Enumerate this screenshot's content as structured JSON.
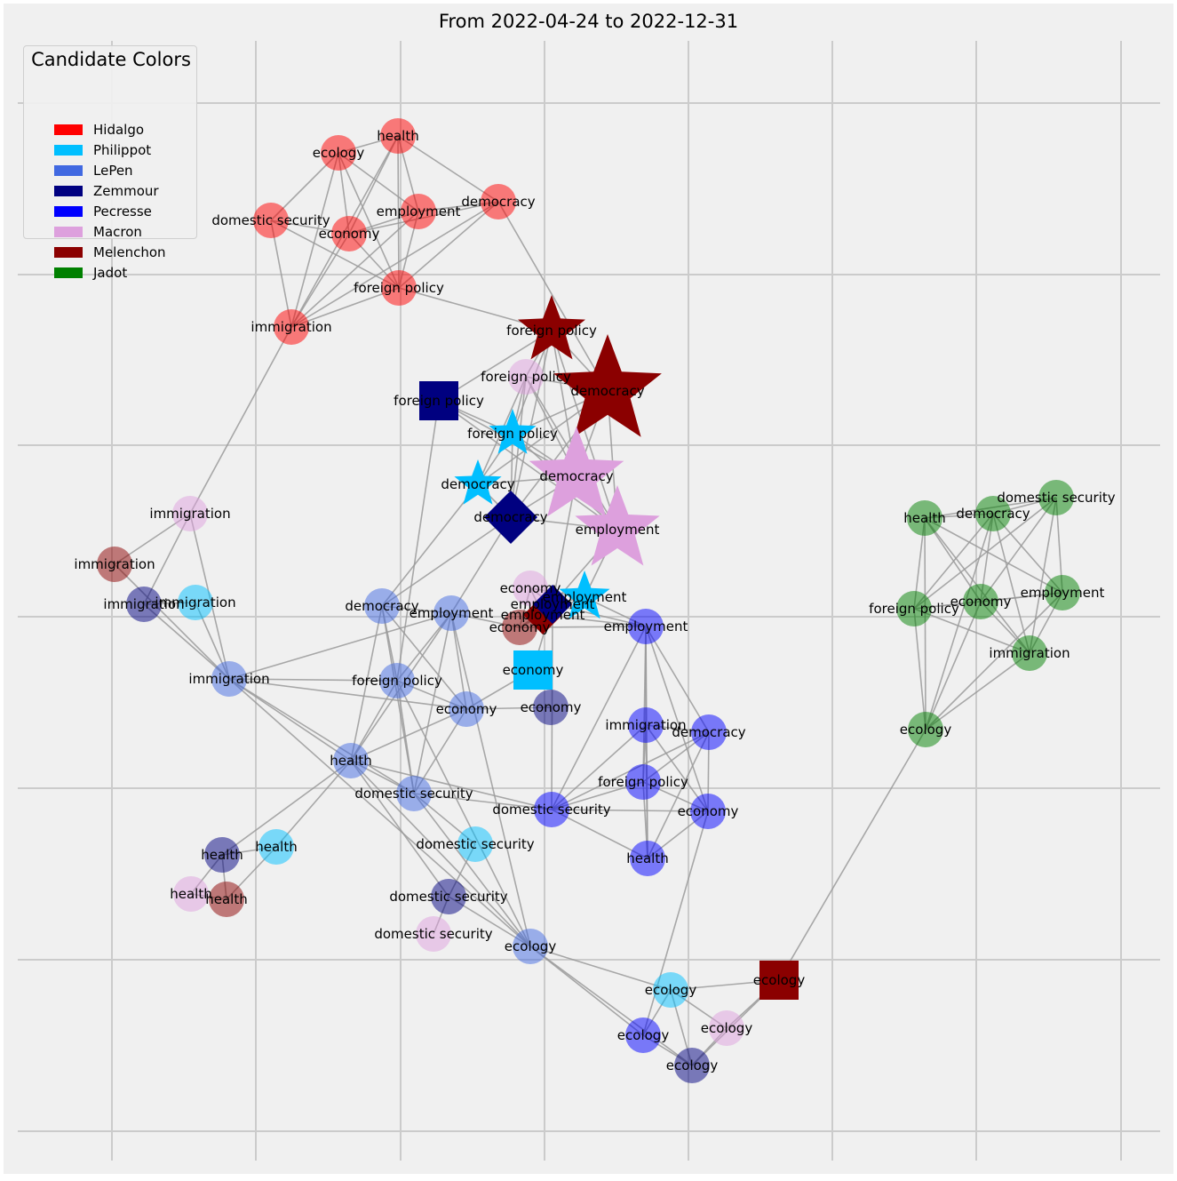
{
  "title": "From 2022-04-24 to 2022-12-31",
  "legend": {
    "title": "Candidate Colors",
    "items": [
      {
        "name": "Hidalgo",
        "color": "#ff0000"
      },
      {
        "name": "Philippot",
        "color": "#00bfff"
      },
      {
        "name": "LePen",
        "color": "#4169e1"
      },
      {
        "name": "Zemmour",
        "color": "#000080"
      },
      {
        "name": "Pecresse",
        "color": "#0000ff"
      },
      {
        "name": "Macron",
        "color": "#dda0dd"
      },
      {
        "name": "Melenchon",
        "color": "#8b0000"
      },
      {
        "name": "Jadot",
        "color": "#008000"
      }
    ]
  },
  "nodes": [
    {
      "id": "H-ecology",
      "label": "ecology",
      "candidate": "Hidalgo"
    },
    {
      "id": "H-health",
      "label": "health",
      "candidate": "Hidalgo"
    },
    {
      "id": "H-democracy",
      "label": "democracy",
      "candidate": "Hidalgo"
    },
    {
      "id": "H-employment",
      "label": "employment",
      "candidate": "Hidalgo"
    },
    {
      "id": "H-domsec",
      "label": "domestic security",
      "candidate": "Hidalgo"
    },
    {
      "id": "H-economy",
      "label": "economy",
      "candidate": "Hidalgo"
    },
    {
      "id": "H-foreign",
      "label": "foreign policy",
      "candidate": "Hidalgo"
    },
    {
      "id": "H-immigration",
      "label": "immigration",
      "candidate": "Hidalgo"
    },
    {
      "id": "Me-foreign",
      "label": "foreign policy",
      "candidate": "Melenchon"
    },
    {
      "id": "Me-democracy",
      "label": "democracy",
      "candidate": "Melenchon"
    },
    {
      "id": "Ma-foreign",
      "label": "foreign policy",
      "candidate": "Macron"
    },
    {
      "id": "Z-foreign",
      "label": "foreign policy",
      "candidate": "Zemmour"
    },
    {
      "id": "P-foreign",
      "label": "foreign policy",
      "candidate": "Philippot"
    },
    {
      "id": "Ma-democracy",
      "label": "democracy",
      "candidate": "Macron"
    },
    {
      "id": "P-democracy",
      "label": "democracy",
      "candidate": "Philippot"
    },
    {
      "id": "Z-democracy",
      "label": "democracy",
      "candidate": "Zemmour"
    },
    {
      "id": "Ma-employment",
      "label": "employment",
      "candidate": "Macron"
    },
    {
      "id": "Ma-immigration",
      "label": "immigration",
      "candidate": "Macron"
    },
    {
      "id": "Me-immigration",
      "label": "immigration",
      "candidate": "Melenchon"
    },
    {
      "id": "Z-immigration",
      "label": "immigration",
      "candidate": "Zemmour"
    },
    {
      "id": "P-immigration",
      "label": "immigration",
      "candidate": "Philippot"
    },
    {
      "id": "L-democracy",
      "label": "democracy",
      "candidate": "LePen"
    },
    {
      "id": "L-employment",
      "label": "employment",
      "candidate": "LePen"
    },
    {
      "id": "L-immigration",
      "label": "immigration",
      "candidate": "LePen"
    },
    {
      "id": "L-foreign",
      "label": "foreign policy",
      "candidate": "LePen"
    },
    {
      "id": "L-economy",
      "label": "economy",
      "candidate": "LePen"
    },
    {
      "id": "L-health",
      "label": "health",
      "candidate": "LePen"
    },
    {
      "id": "L-domsec",
      "label": "domestic security",
      "candidate": "LePen"
    },
    {
      "id": "L-ecology",
      "label": "ecology",
      "candidate": "LePen"
    },
    {
      "id": "Ma-economy",
      "label": "economy",
      "candidate": "Macron"
    },
    {
      "id": "Me-economy",
      "label": "economy",
      "candidate": "Melenchon"
    },
    {
      "id": "Me-employment",
      "label": "employment",
      "candidate": "Melenchon"
    },
    {
      "id": "Z-employment",
      "label": "employment",
      "candidate": "Zemmour"
    },
    {
      "id": "P-employment",
      "label": "employment",
      "candidate": "Philippot"
    },
    {
      "id": "P-economy",
      "label": "economy",
      "candidate": "Philippot"
    },
    {
      "id": "Z-economy",
      "label": "economy",
      "candidate": "Zemmour"
    },
    {
      "id": "Pe-employment",
      "label": "employment",
      "candidate": "Pecresse"
    },
    {
      "id": "Pe-immigration",
      "label": "immigration",
      "candidate": "Pecresse"
    },
    {
      "id": "Pe-democracy",
      "label": "democracy",
      "candidate": "Pecresse"
    },
    {
      "id": "Pe-foreign",
      "label": "foreign policy",
      "candidate": "Pecresse"
    },
    {
      "id": "Pe-domsec",
      "label": "domestic security",
      "candidate": "Pecresse"
    },
    {
      "id": "Pe-economy",
      "label": "economy",
      "candidate": "Pecresse"
    },
    {
      "id": "Pe-health",
      "label": "health",
      "candidate": "Pecresse"
    },
    {
      "id": "P-domsec",
      "label": "domestic security",
      "candidate": "Philippot"
    },
    {
      "id": "Z-domsec",
      "label": "domestic security",
      "candidate": "Zemmour"
    },
    {
      "id": "Ma-domsec",
      "label": "domestic security",
      "candidate": "Macron"
    },
    {
      "id": "Z-health",
      "label": "health",
      "candidate": "Zemmour"
    },
    {
      "id": "P-health",
      "label": "health",
      "candidate": "Philippot"
    },
    {
      "id": "Ma-health",
      "label": "health",
      "candidate": "Macron"
    },
    {
      "id": "Me-health",
      "label": "health",
      "candidate": "Melenchon"
    },
    {
      "id": "P-ecology",
      "label": "ecology",
      "candidate": "Philippot"
    },
    {
      "id": "Me-ecology",
      "label": "ecology",
      "candidate": "Melenchon"
    },
    {
      "id": "Pe-ecology",
      "label": "ecology",
      "candidate": "Pecresse"
    },
    {
      "id": "Ma-ecology",
      "label": "ecology",
      "candidate": "Macron"
    },
    {
      "id": "Z-ecology",
      "label": "ecology",
      "candidate": "Zemmour"
    },
    {
      "id": "J-health",
      "label": "health",
      "candidate": "Jadot"
    },
    {
      "id": "J-democracy",
      "label": "democracy",
      "candidate": "Jadot"
    },
    {
      "id": "J-domsec",
      "label": "domestic security",
      "candidate": "Jadot"
    },
    {
      "id": "J-employment",
      "label": "employment",
      "candidate": "Jadot"
    },
    {
      "id": "J-economy",
      "label": "economy",
      "candidate": "Jadot"
    },
    {
      "id": "J-foreign",
      "label": "foreign policy",
      "candidate": "Jadot"
    },
    {
      "id": "J-immigration",
      "label": "immigration",
      "candidate": "Jadot"
    },
    {
      "id": "J-ecology",
      "label": "ecology",
      "candidate": "Jadot"
    }
  ],
  "edges": [
    [
      "H-ecology",
      "H-health"
    ],
    [
      "H-ecology",
      "H-domsec"
    ],
    [
      "H-ecology",
      "H-economy"
    ],
    [
      "H-ecology",
      "H-employment"
    ],
    [
      "H-ecology",
      "H-foreign"
    ],
    [
      "H-ecology",
      "H-immigration"
    ],
    [
      "H-health",
      "H-democracy"
    ],
    [
      "H-health",
      "H-employment"
    ],
    [
      "H-health",
      "H-economy"
    ],
    [
      "H-health",
      "H-foreign"
    ],
    [
      "H-health",
      "H-immigration"
    ],
    [
      "H-democracy",
      "H-employment"
    ],
    [
      "H-democracy",
      "H-economy"
    ],
    [
      "H-democracy",
      "H-foreign"
    ],
    [
      "H-democracy",
      "H-immigration"
    ],
    [
      "H-democracy",
      "Me-democracy"
    ],
    [
      "H-employment",
      "H-economy"
    ],
    [
      "H-employment",
      "H-foreign"
    ],
    [
      "H-employment",
      "H-immigration"
    ],
    [
      "H-domsec",
      "H-economy"
    ],
    [
      "H-domsec",
      "H-foreign"
    ],
    [
      "H-domsec",
      "H-immigration"
    ],
    [
      "H-economy",
      "H-foreign"
    ],
    [
      "H-economy",
      "H-immigration"
    ],
    [
      "H-foreign",
      "H-immigration"
    ],
    [
      "H-foreign",
      "Me-foreign"
    ],
    [
      "H-immigration",
      "Ma-immigration"
    ],
    [
      "Me-foreign",
      "Me-democracy"
    ],
    [
      "Me-foreign",
      "Ma-foreign"
    ],
    [
      "Me-foreign",
      "Z-foreign"
    ],
    [
      "Me-foreign",
      "P-foreign"
    ],
    [
      "Me-foreign",
      "Ma-democracy"
    ],
    [
      "Me-foreign",
      "Ma-employment"
    ],
    [
      "Me-foreign",
      "Z-democracy"
    ],
    [
      "Me-democracy",
      "Ma-foreign"
    ],
    [
      "Me-democracy",
      "P-foreign"
    ],
    [
      "Me-democracy",
      "Ma-democracy"
    ],
    [
      "Me-democracy",
      "Ma-employment"
    ],
    [
      "Me-democracy",
      "Z-democracy"
    ],
    [
      "Me-democracy",
      "P-democracy"
    ],
    [
      "Ma-foreign",
      "P-foreign"
    ],
    [
      "Ma-foreign",
      "Ma-democracy"
    ],
    [
      "Ma-foreign",
      "Z-democracy"
    ],
    [
      "Ma-foreign",
      "P-democracy"
    ],
    [
      "Ma-foreign",
      "Ma-employment"
    ],
    [
      "Z-foreign",
      "P-foreign"
    ],
    [
      "Z-foreign",
      "Ma-democracy"
    ],
    [
      "Z-foreign",
      "L-foreign"
    ],
    [
      "Z-foreign",
      "Ma-employment"
    ],
    [
      "P-foreign",
      "Ma-democracy"
    ],
    [
      "P-foreign",
      "Z-democracy"
    ],
    [
      "P-foreign",
      "P-democracy"
    ],
    [
      "P-foreign",
      "Ma-employment"
    ],
    [
      "Ma-democracy",
      "Ma-employment"
    ],
    [
      "Ma-democracy",
      "Z-democracy"
    ],
    [
      "Ma-democracy",
      "P-democracy"
    ],
    [
      "Ma-democracy",
      "Z-employment"
    ],
    [
      "Ma-employment",
      "Z-democracy"
    ],
    [
      "Ma-employment",
      "P-employment"
    ],
    [
      "Ma-employment",
      "Z-employment"
    ],
    [
      "Z-democracy",
      "L-democracy"
    ],
    [
      "Z-democracy",
      "P-democracy"
    ],
    [
      "Z-democracy",
      "L-employment"
    ],
    [
      "P-democracy",
      "L-democracy"
    ],
    [
      "Ma-immigration",
      "Me-immigration"
    ],
    [
      "Ma-immigration",
      "Z-immigration"
    ],
    [
      "Ma-immigration",
      "L-immigration"
    ],
    [
      "Me-immigration",
      "L-immigration"
    ],
    [
      "Z-immigration",
      "L-immigration"
    ],
    [
      "P-immigration",
      "L-immigration"
    ],
    [
      "Z-immigration",
      "P-immigration"
    ],
    [
      "L-democracy",
      "L-foreign"
    ],
    [
      "L-democracy",
      "L-health"
    ],
    [
      "L-democracy",
      "L-domsec"
    ],
    [
      "L-democracy",
      "L-economy"
    ],
    [
      "L-democracy",
      "L-employment"
    ],
    [
      "L-employment",
      "L-immigration"
    ],
    [
      "L-employment",
      "L-foreign"
    ],
    [
      "L-employment",
      "L-economy"
    ],
    [
      "L-employment",
      "L-health"
    ],
    [
      "L-employment",
      "L-domsec"
    ],
    [
      "L-employment",
      "L-ecology"
    ],
    [
      "L-employment",
      "Me-economy"
    ],
    [
      "L-immigration",
      "L-foreign"
    ],
    [
      "L-immigration",
      "L-health"
    ],
    [
      "L-immigration",
      "L-domsec"
    ],
    [
      "L-immigration",
      "L-ecology"
    ],
    [
      "L-immigration",
      "L-economy"
    ],
    [
      "L-foreign",
      "L-health"
    ],
    [
      "L-foreign",
      "L-domsec"
    ],
    [
      "L-foreign",
      "L-economy"
    ],
    [
      "L-foreign",
      "L-ecology"
    ],
    [
      "L-economy",
      "L-health"
    ],
    [
      "L-economy",
      "Z-economy"
    ],
    [
      "L-economy",
      "P-economy"
    ],
    [
      "L-economy",
      "L-domsec"
    ],
    [
      "L-health",
      "L-domsec"
    ],
    [
      "L-health",
      "L-ecology"
    ],
    [
      "L-health",
      "Z-health"
    ],
    [
      "L-health",
      "P-health"
    ],
    [
      "L-health",
      "Pe-domsec"
    ],
    [
      "L-domsec",
      "L-ecology"
    ],
    [
      "L-domsec",
      "Pe-domsec"
    ],
    [
      "L-domsec",
      "P-domsec"
    ],
    [
      "Ma-economy",
      "Me-economy"
    ],
    [
      "Ma-economy",
      "Me-employment"
    ],
    [
      "Ma-economy",
      "Z-employment"
    ],
    [
      "Ma-economy",
      "P-employment"
    ],
    [
      "Me-economy",
      "Me-employment"
    ],
    [
      "Me-economy",
      "Z-employment"
    ],
    [
      "Me-economy",
      "Pe-employment"
    ],
    [
      "Me-employment",
      "Z-employment"
    ],
    [
      "Me-employment",
      "P-employment"
    ],
    [
      "Me-employment",
      "Pe-employment"
    ],
    [
      "Z-employment",
      "P-employment"
    ],
    [
      "Z-employment",
      "Pe-employment"
    ],
    [
      "Z-employment",
      "P-economy"
    ],
    [
      "Z-employment",
      "Pe-domsec"
    ],
    [
      "P-employment",
      "Pe-employment"
    ],
    [
      "Pe-employment",
      "Pe-immigration"
    ],
    [
      "Pe-employment",
      "Pe-democracy"
    ],
    [
      "Pe-employment",
      "Pe-foreign"
    ],
    [
      "Pe-employment",
      "Pe-domsec"
    ],
    [
      "Pe-employment",
      "Pe-economy"
    ],
    [
      "Pe-employment",
      "Pe-health"
    ],
    [
      "Pe-immigration",
      "Pe-democracy"
    ],
    [
      "Pe-immigration",
      "Pe-foreign"
    ],
    [
      "Pe-immigration",
      "Pe-domsec"
    ],
    [
      "Pe-immigration",
      "Pe-economy"
    ],
    [
      "Pe-immigration",
      "Pe-health"
    ],
    [
      "Pe-democracy",
      "Pe-foreign"
    ],
    [
      "Pe-democracy",
      "Pe-domsec"
    ],
    [
      "Pe-democracy",
      "Pe-economy"
    ],
    [
      "Pe-democracy",
      "Pe-health"
    ],
    [
      "Pe-foreign",
      "Pe-domsec"
    ],
    [
      "Pe-foreign",
      "Pe-economy"
    ],
    [
      "Pe-foreign",
      "Pe-health"
    ],
    [
      "Pe-domsec",
      "Pe-economy"
    ],
    [
      "Pe-domsec",
      "Pe-health"
    ],
    [
      "Pe-economy",
      "Pe-health"
    ],
    [
      "Pe-economy",
      "Pe-ecology"
    ],
    [
      "Z-domsec",
      "Ma-domsec"
    ],
    [
      "Z-domsec",
      "P-domsec"
    ],
    [
      "Z-domsec",
      "L-ecology"
    ],
    [
      "Z-domsec",
      "L-health"
    ],
    [
      "Z-health",
      "P-health"
    ],
    [
      "Z-health",
      "Ma-health"
    ],
    [
      "Z-health",
      "Me-health"
    ],
    [
      "P-health",
      "Me-health"
    ],
    [
      "Ma-health",
      "Me-health"
    ],
    [
      "L-ecology",
      "P-ecology"
    ],
    [
      "L-ecology",
      "Pe-ecology"
    ],
    [
      "L-ecology",
      "Z-ecology"
    ],
    [
      "P-ecology",
      "Me-ecology"
    ],
    [
      "P-ecology",
      "Pe-ecology"
    ],
    [
      "P-ecology",
      "Z-ecology"
    ],
    [
      "P-ecology",
      "Ma-ecology"
    ],
    [
      "Me-ecology",
      "Ma-ecology"
    ],
    [
      "Me-ecology",
      "Z-ecology"
    ],
    [
      "Me-ecology",
      "J-ecology"
    ],
    [
      "Pe-ecology",
      "Z-ecology"
    ],
    [
      "Ma-ecology",
      "Z-ecology"
    ],
    [
      "J-health",
      "J-democracy"
    ],
    [
      "J-health",
      "J-domsec"
    ],
    [
      "J-health",
      "J-employment"
    ],
    [
      "J-health",
      "J-economy"
    ],
    [
      "J-health",
      "J-foreign"
    ],
    [
      "J-health",
      "J-immigration"
    ],
    [
      "J-health",
      "J-ecology"
    ],
    [
      "J-democracy",
      "J-domsec"
    ],
    [
      "J-democracy",
      "J-employment"
    ],
    [
      "J-democracy",
      "J-economy"
    ],
    [
      "J-democracy",
      "J-foreign"
    ],
    [
      "J-democracy",
      "J-immigration"
    ],
    [
      "J-democracy",
      "J-ecology"
    ],
    [
      "J-domsec",
      "J-employment"
    ],
    [
      "J-domsec",
      "J-economy"
    ],
    [
      "J-domsec",
      "J-foreign"
    ],
    [
      "J-domsec",
      "J-immigration"
    ],
    [
      "J-employment",
      "J-economy"
    ],
    [
      "J-employment",
      "J-foreign"
    ],
    [
      "J-employment",
      "J-immigration"
    ],
    [
      "J-employment",
      "J-ecology"
    ],
    [
      "J-economy",
      "J-foreign"
    ],
    [
      "J-economy",
      "J-immigration"
    ],
    [
      "J-economy",
      "J-ecology"
    ],
    [
      "J-foreign",
      "J-immigration"
    ],
    [
      "J-foreign",
      "J-ecology"
    ],
    [
      "J-immigration",
      "J-ecology"
    ]
  ]
}
